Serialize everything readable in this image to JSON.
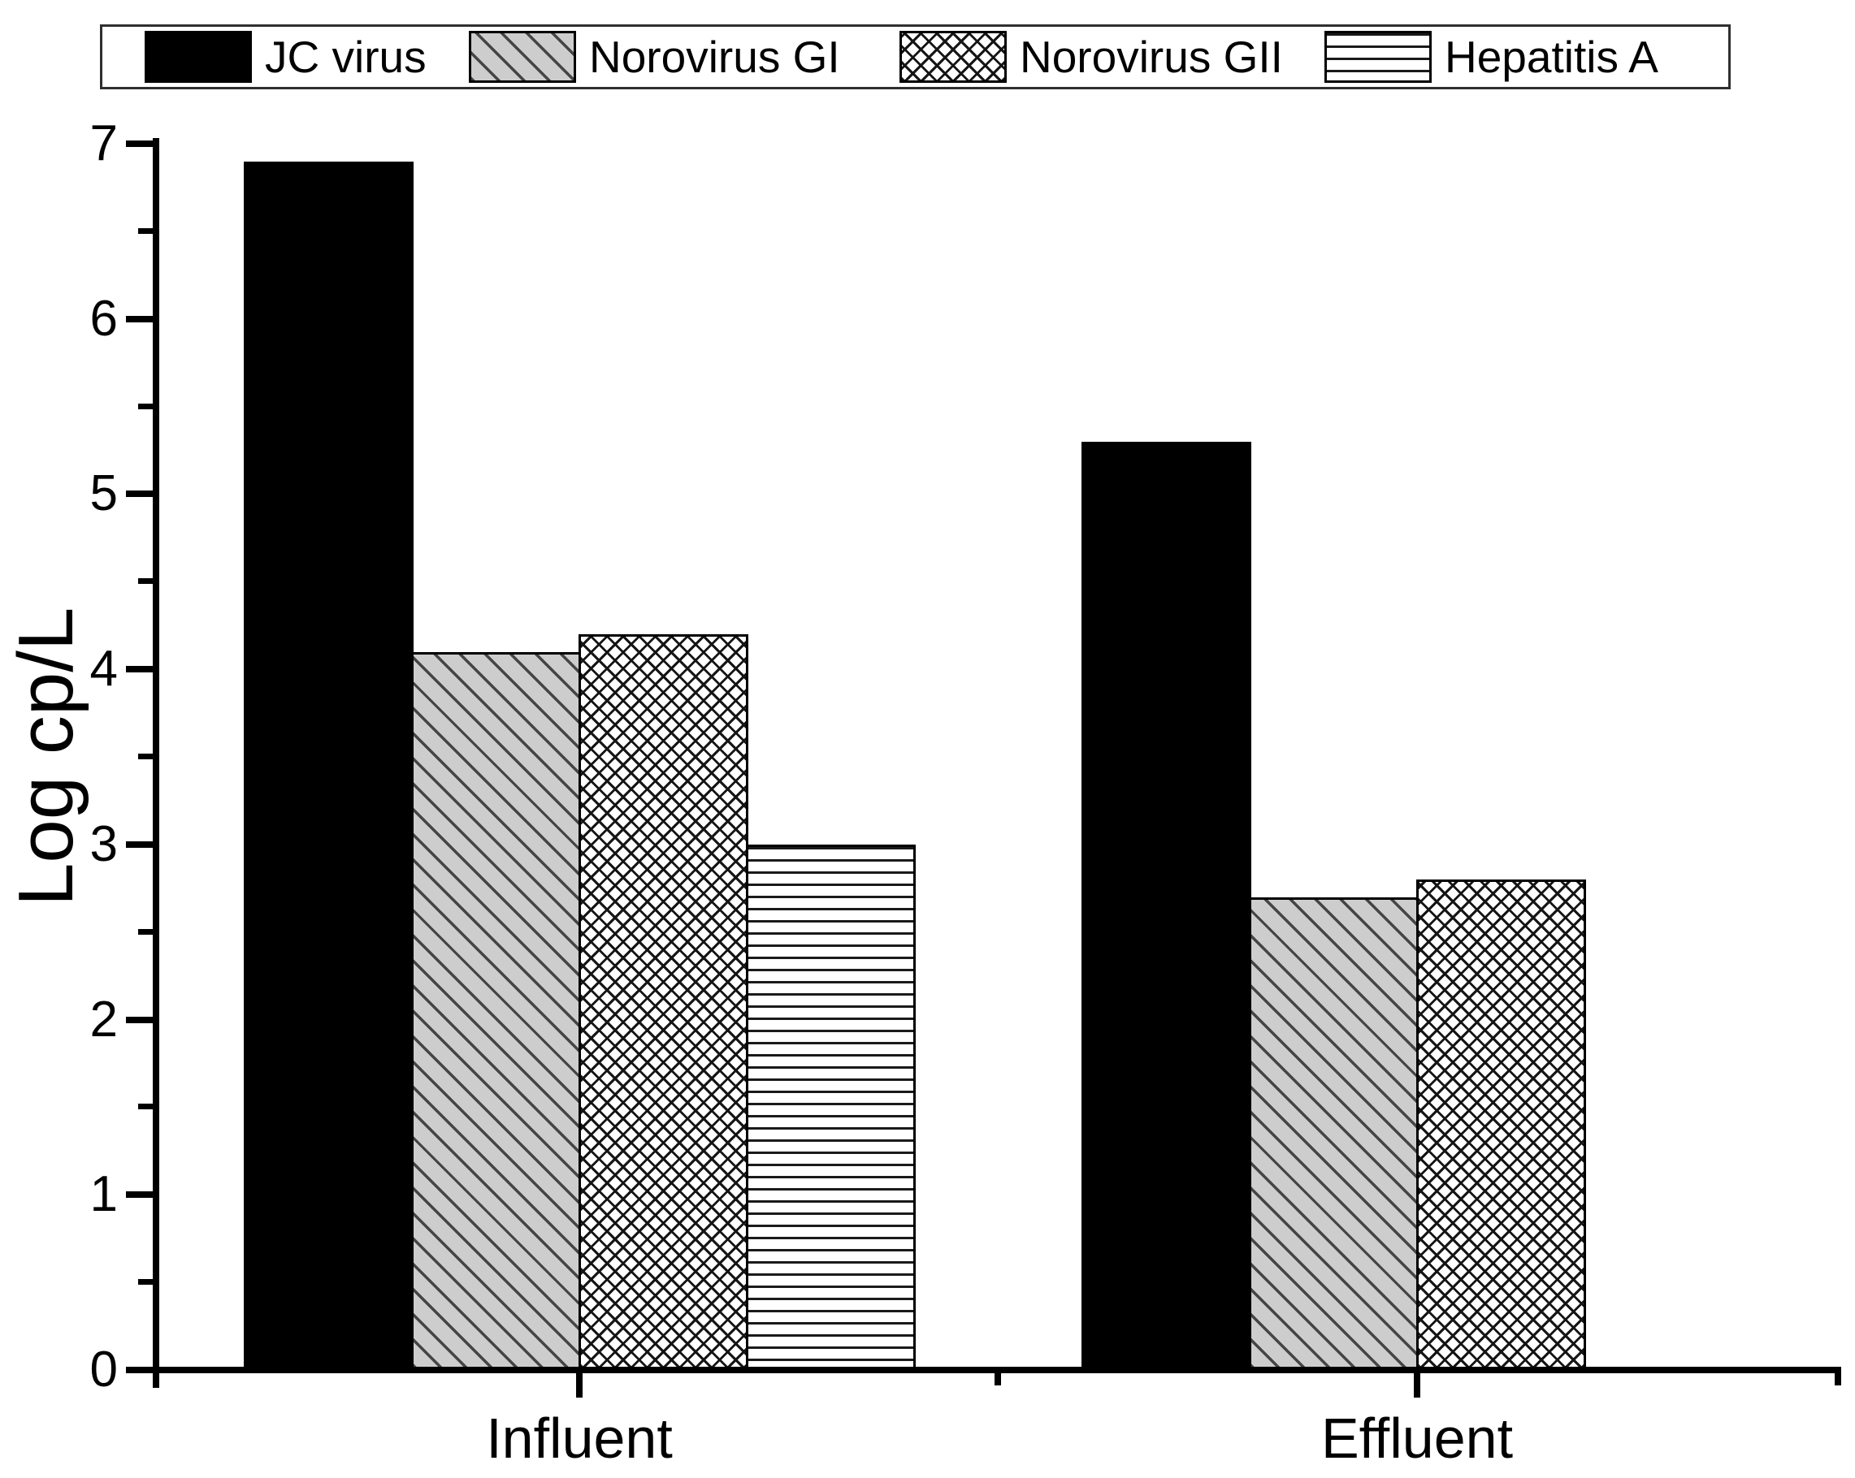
{
  "figure": {
    "background_color": "#ffffff",
    "text_color": "#000000",
    "axis_color": "#000000"
  },
  "chart_data": {
    "type": "bar",
    "title": "",
    "xlabel": "",
    "ylabel": "Log cp/L",
    "ylim": [
      0,
      7
    ],
    "yticks": [
      0,
      1,
      2,
      3,
      4,
      5,
      6,
      7
    ],
    "y_minor_tick_interval": 0.5,
    "grid": false,
    "legend_position": "top",
    "categories": [
      "Influent",
      "Effluent"
    ],
    "series": [
      {
        "name": "JC virus",
        "pattern": "solid",
        "fill_color": "#000000",
        "values": [
          6.9,
          5.3
        ]
      },
      {
        "name": "Norovirus GI",
        "pattern": "diag",
        "fill_color": "#cdcdcd",
        "values": [
          4.1,
          2.7
        ]
      },
      {
        "name": "Norovirus GII",
        "pattern": "cross",
        "fill_color": "#ffffff",
        "values": [
          4.2,
          2.8
        ]
      },
      {
        "name": "Hepatitis A",
        "pattern": "hlines",
        "fill_color": "#ffffff",
        "values": [
          3.0,
          null
        ]
      }
    ]
  }
}
